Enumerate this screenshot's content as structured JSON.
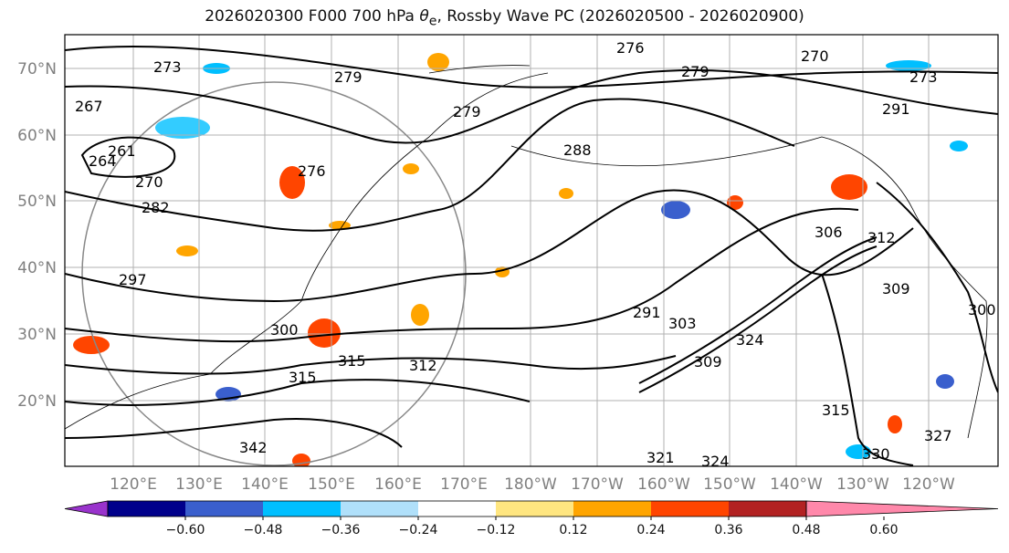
{
  "title_prefix": "2026020300 F000 700 hPa ",
  "title_symbol": "θ",
  "title_subscript": "e",
  "title_suffix": ", Rossby Wave PC (2026020500 - 2026020900)",
  "lat_labels": [
    "70°N",
    "60°N",
    "50°N",
    "40°N",
    "30°N",
    "20°N"
  ],
  "lon_labels": [
    "120°E",
    "130°E",
    "140°E",
    "150°E",
    "160°E",
    "170°E",
    "180°W",
    "170°W",
    "160°W",
    "150°W",
    "140°W",
    "130°W",
    "120°W"
  ],
  "contour_labels": [
    "273",
    "267",
    "261",
    "264",
    "270",
    "282",
    "279",
    "279",
    "276",
    "288",
    "276",
    "279",
    "270",
    "273",
    "291",
    "297",
    "306",
    "309",
    "300",
    "315",
    "312",
    "315",
    "291",
    "303",
    "309",
    "324",
    "315",
    "321",
    "324",
    "330",
    "327",
    "342",
    "312",
    "300"
  ],
  "colorbar": {
    "ticks": [
      "−0.60",
      "−0.48",
      "−0.36",
      "−0.24",
      "−0.12",
      "0.12",
      "0.24",
      "0.36",
      "0.48",
      "0.60"
    ],
    "colors": [
      "#9933cc",
      "#00008b",
      "#3a5fcd",
      "#00bfff",
      "#b0e0fa",
      "#ffffff",
      "#ffe680",
      "#ffa500",
      "#ff4500",
      "#b22222",
      "#ff88aa"
    ]
  }
}
